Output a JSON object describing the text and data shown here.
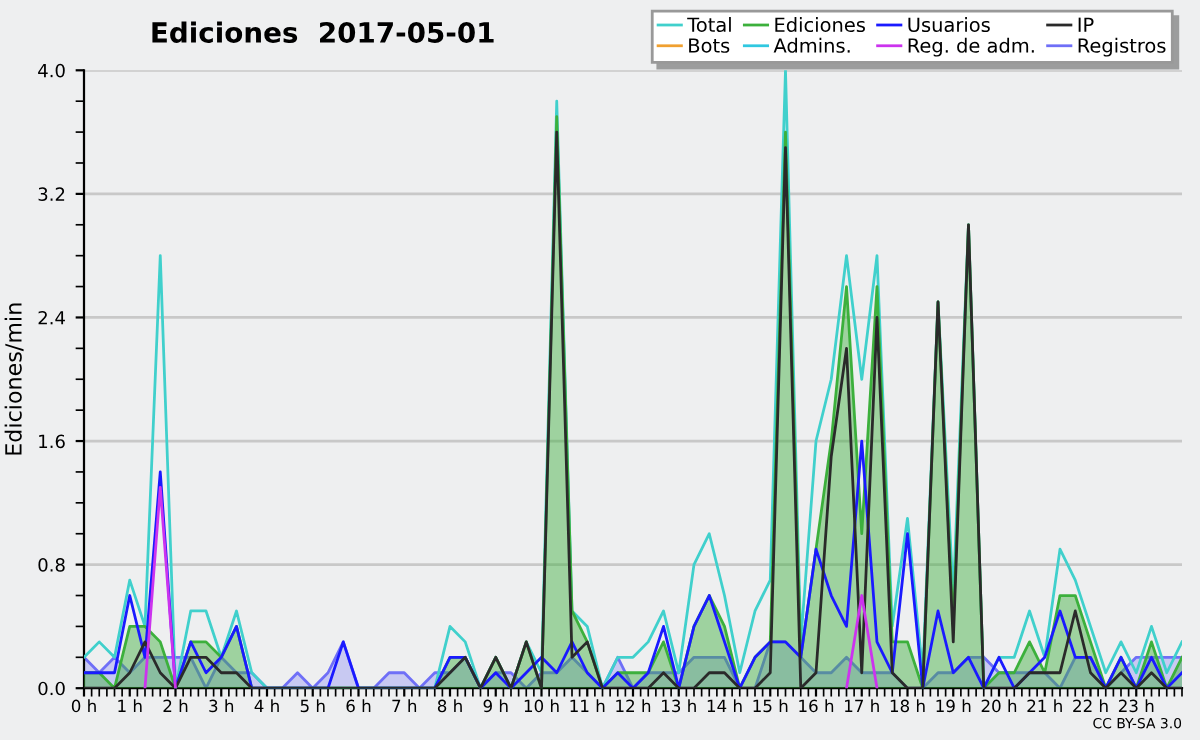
{
  "chart_data": {
    "type": "line",
    "title": "Ediciones  2017-05-01",
    "ylabel": "Ediciones/min",
    "annotations": [
      "CC BY-SA 3.0"
    ],
    "x": [
      0,
      0.333,
      0.667,
      1,
      1.333,
      1.667,
      2,
      2.333,
      2.667,
      3,
      3.333,
      3.667,
      4,
      4.333,
      4.667,
      5,
      5.333,
      5.667,
      6,
      6.333,
      6.667,
      7,
      7.333,
      7.667,
      8,
      8.333,
      8.667,
      9,
      9.333,
      9.667,
      10,
      10.333,
      10.667,
      11,
      11.333,
      11.667,
      12,
      12.333,
      12.667,
      13,
      13.333,
      13.667,
      14,
      14.333,
      14.667,
      15,
      15.333,
      15.667,
      16,
      16.333,
      16.667,
      17,
      17.333,
      17.667,
      18,
      18.333,
      18.667,
      19,
      19.333,
      19.667,
      20,
      20.333,
      20.667,
      21,
      21.333,
      21.667,
      22,
      22.333,
      22.667,
      23,
      23.333,
      23.667,
      24
    ],
    "xlim": [
      0,
      24
    ],
    "ylim": [
      0,
      4.0
    ],
    "xticks": [
      {
        "value": 0,
        "label": "0 h"
      },
      {
        "value": 1,
        "label": "1 h"
      },
      {
        "value": 2,
        "label": "2 h"
      },
      {
        "value": 3,
        "label": "3 h"
      },
      {
        "value": 4,
        "label": "4 h"
      },
      {
        "value": 5,
        "label": "5 h"
      },
      {
        "value": 6,
        "label": "6 h"
      },
      {
        "value": 7,
        "label": "7 h"
      },
      {
        "value": 8,
        "label": "8 h"
      },
      {
        "value": 9,
        "label": "9 h"
      },
      {
        "value": 10,
        "label": "10 h"
      },
      {
        "value": 11,
        "label": "11 h"
      },
      {
        "value": 12,
        "label": "12 h"
      },
      {
        "value": 13,
        "label": "13 h"
      },
      {
        "value": 14,
        "label": "14 h"
      },
      {
        "value": 15,
        "label": "15 h"
      },
      {
        "value": 16,
        "label": "16 h"
      },
      {
        "value": 17,
        "label": "17 h"
      },
      {
        "value": 18,
        "label": "18 h"
      },
      {
        "value": 19,
        "label": "19 h"
      },
      {
        "value": 20,
        "label": "20 h"
      },
      {
        "value": 21,
        "label": "21 h"
      },
      {
        "value": 22,
        "label": "22 h"
      },
      {
        "value": 23,
        "label": "23 h"
      }
    ],
    "yticks": [
      {
        "value": 0,
        "label": "0.0"
      },
      0.8,
      1.6,
      2.4,
      3.2,
      {
        "value": 4,
        "label": "4.0"
      }
    ],
    "grid": "y",
    "legend": "top right",
    "marker": "none",
    "line_style": "solid",
    "series": [
      {
        "name": "Registros",
        "type": "area",
        "color": "#6f6ff7",
        "values": [
          0.2,
          0.1,
          0.2,
          0.1,
          0.2,
          0.2,
          0.2,
          0.2,
          0,
          0.2,
          0.1,
          0.1,
          0,
          0,
          0.1,
          0,
          0.1,
          0.3,
          0,
          0,
          0.1,
          0.1,
          0,
          0.1,
          0.1,
          0.2,
          0,
          0.1,
          0.1,
          0,
          0.1,
          0.1,
          0.2,
          0.1,
          0,
          0.2,
          0,
          0.1,
          0.1,
          0.1,
          0.2,
          0.2,
          0.2,
          0,
          0,
          0.3,
          0.3,
          0.2,
          0.1,
          0.1,
          0.2,
          0.1,
          0.1,
          0.1,
          0,
          0,
          0.1,
          0.1,
          0.2,
          0.2,
          0.1,
          0.1,
          0.1,
          0.1,
          0,
          0.2,
          0.2,
          0,
          0.1,
          0.2,
          0.2,
          0.2,
          0.2
        ]
      },
      {
        "name": "Total",
        "color": "#40d0cc",
        "values": [
          0.2,
          0.3,
          0.2,
          0.7,
          0.4,
          2.8,
          0,
          0.5,
          0.5,
          0.2,
          0.5,
          0.1,
          0,
          0,
          0,
          0,
          0,
          0,
          0,
          0,
          0,
          0,
          0,
          0,
          0.4,
          0.3,
          0,
          0.2,
          0,
          0.3,
          0.1,
          3.8,
          0.5,
          0.4,
          0,
          0.2,
          0.2,
          0.3,
          0.5,
          0.1,
          0.8,
          1.0,
          0.6,
          0.1,
          0.5,
          0.7,
          4.0,
          0.3,
          1.6,
          2.0,
          2.8,
          2.0,
          2.8,
          0.4,
          1.1,
          0.1,
          2.5,
          0.6,
          3.0,
          0,
          0.2,
          0.2,
          0.5,
          0.2,
          0.9,
          0.7,
          0.4,
          0.1,
          0.3,
          0.1,
          0.4,
          0.1,
          0.3
        ]
      },
      {
        "name": "Ediciones",
        "type": "area",
        "color": "#3cb03c",
        "values": [
          0.1,
          0.1,
          0,
          0.4,
          0.4,
          0.3,
          0,
          0.3,
          0.3,
          0.2,
          0.4,
          0,
          0,
          0,
          0,
          0,
          0,
          0,
          0,
          0,
          0,
          0,
          0,
          0,
          0.2,
          0.2,
          0,
          0.2,
          0,
          0.3,
          0,
          3.7,
          0.5,
          0.3,
          0,
          0.1,
          0.1,
          0.1,
          0.3,
          0,
          0.4,
          0.6,
          0.4,
          0,
          0.2,
          0.3,
          3.6,
          0.2,
          0.9,
          1.6,
          2.6,
          1.0,
          2.6,
          0.3,
          0.3,
          0,
          2.5,
          0.4,
          3.0,
          0,
          0.1,
          0.1,
          0.3,
          0.1,
          0.6,
          0.6,
          0.3,
          0,
          0.2,
          0,
          0.3,
          0,
          0.2
        ]
      },
      {
        "name": "Usuarios",
        "color": "#1a1aff",
        "values": [
          0.1,
          0.1,
          0.1,
          0.6,
          0.2,
          1.4,
          0,
          0.3,
          0.1,
          0.2,
          0.4,
          0,
          0,
          0,
          0,
          0,
          0,
          0.3,
          0,
          0,
          0,
          0,
          0,
          0,
          0.2,
          0.2,
          0,
          0.1,
          0,
          0.1,
          0.2,
          0.1,
          0.3,
          0.1,
          0,
          0.1,
          0,
          0.1,
          0.4,
          0,
          0.4,
          0.6,
          0.3,
          0,
          0.2,
          0.3,
          0.3,
          0.2,
          0.9,
          0.6,
          0.4,
          1.6,
          0.3,
          0.1,
          1.0,
          0,
          0.5,
          0.1,
          0.2,
          0,
          0.2,
          0,
          0.1,
          0.2,
          0.5,
          0.2,
          0.2,
          0,
          0.2,
          0,
          0.2,
          0,
          0.1
        ]
      },
      {
        "name": "IP",
        "color": "#2a2a2a",
        "values": [
          0,
          0,
          0,
          0.1,
          0.3,
          0.1,
          0,
          0.2,
          0.2,
          0.1,
          0.1,
          0,
          0,
          0,
          0,
          0,
          0,
          0,
          0,
          0,
          0,
          0,
          0,
          0,
          0.1,
          0.2,
          0,
          0.2,
          0,
          0.3,
          0,
          3.6,
          0.2,
          0.3,
          0,
          0,
          0,
          0,
          0.1,
          0,
          0,
          0.1,
          0.1,
          0,
          0,
          0.1,
          3.5,
          0,
          0.1,
          1.5,
          2.2,
          0.1,
          2.4,
          0.1,
          0,
          0,
          2.5,
          0.3,
          3.0,
          0,
          0,
          0,
          0.1,
          0.1,
          0.1,
          0.5,
          0.1,
          0,
          0.1,
          0,
          0.1,
          0,
          0
        ]
      },
      {
        "name": "Reg. de adm.",
        "color": "#cc33ee",
        "values": [
          null,
          null,
          null,
          null,
          0,
          1.3,
          0,
          null,
          null,
          null,
          null,
          null,
          null,
          null,
          null,
          null,
          null,
          null,
          null,
          null,
          null,
          null,
          null,
          null,
          null,
          null,
          null,
          null,
          null,
          null,
          null,
          null,
          null,
          null,
          null,
          null,
          null,
          null,
          null,
          null,
          null,
          null,
          null,
          null,
          null,
          null,
          null,
          null,
          null,
          null,
          0,
          0.6,
          0,
          null,
          null,
          null,
          null,
          null,
          null,
          null,
          null,
          null,
          null,
          null,
          null,
          null,
          null,
          null,
          null,
          null,
          null,
          null,
          null
        ]
      },
      {
        "name": "Bots",
        "color": "#f0a030",
        "values": [
          null,
          null,
          null,
          null,
          null,
          null,
          null,
          null,
          null,
          null,
          null,
          null,
          null,
          null,
          null,
          null,
          null,
          null,
          null,
          null,
          null,
          null,
          null,
          null,
          null,
          null,
          null,
          null,
          null,
          null,
          null,
          null,
          null,
          null,
          null,
          null,
          null,
          null,
          null,
          null,
          null,
          null,
          null,
          null,
          null,
          null,
          null,
          null,
          null,
          null,
          null,
          null,
          null,
          null,
          null,
          null,
          null,
          null,
          null,
          null,
          null,
          null,
          null,
          null,
          null,
          null,
          null,
          null,
          null,
          null,
          null,
          null,
          null
        ]
      },
      {
        "name": "Admins.",
        "color": "#30c8e0",
        "values": [
          null,
          null,
          null,
          null,
          null,
          null,
          null,
          null,
          null,
          null,
          null,
          null,
          null,
          null,
          null,
          null,
          null,
          null,
          null,
          null,
          null,
          null,
          null,
          null,
          null,
          null,
          null,
          null,
          null,
          null,
          null,
          null,
          null,
          null,
          null,
          null,
          null,
          null,
          null,
          null,
          null,
          null,
          null,
          null,
          null,
          null,
          null,
          null,
          null,
          null,
          null,
          null,
          null,
          null,
          null,
          null,
          null,
          null,
          null,
          null,
          null,
          null,
          null,
          null,
          null,
          null,
          null,
          null,
          null,
          null,
          null,
          null,
          null
        ]
      }
    ]
  }
}
